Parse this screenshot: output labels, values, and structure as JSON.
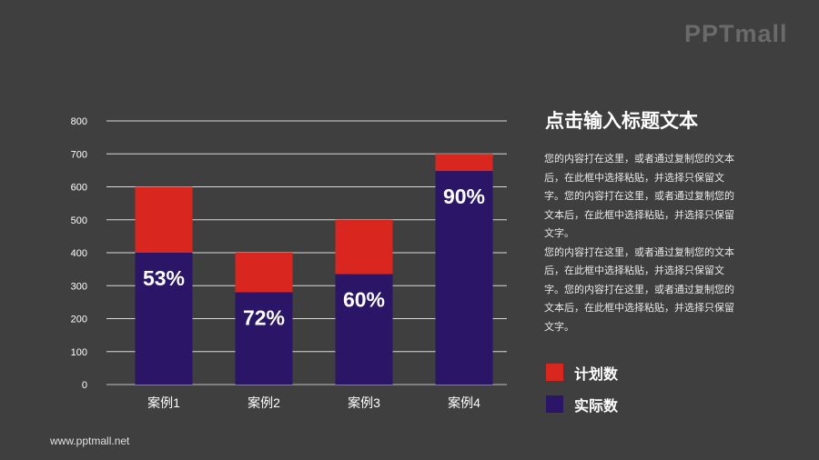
{
  "logo": "PPTmall",
  "side": {
    "title": "点击输入标题文本",
    "paragraphs": [
      "您的内容打在这里，或者通过复制您的文本后，在此框中选择粘贴，并选择只保留文字。您的内容打在这里，或者通过复制您的文本后，在此框中选择粘贴，并选择只保留文字。",
      "您的内容打在这里，或者通过复制您的文本后，在此框中选择粘贴，并选择只保留文字。您的内容打在这里，或者通过复制您的文本后，在此框中选择粘贴，并选择只保留文字。"
    ]
  },
  "footer": {
    "url": "www.pptmall.net"
  },
  "chart_data": {
    "type": "bar",
    "categories": [
      "案例1",
      "案例2",
      "案例3",
      "案例4"
    ],
    "series": [
      {
        "name": "计划数",
        "values": [
          600,
          400,
          500,
          700
        ],
        "color": "#d9271f"
      },
      {
        "name": "实际数",
        "values": [
          400,
          280,
          335,
          648
        ],
        "color": "#2a1566"
      }
    ],
    "data_labels": [
      "53%",
      "72%",
      "60%",
      "90%"
    ],
    "ylim": [
      0,
      800
    ],
    "yticks": [
      0,
      100,
      200,
      300,
      400,
      500,
      600,
      700,
      800
    ],
    "grid": true,
    "legend": "right",
    "overlap": true
  }
}
